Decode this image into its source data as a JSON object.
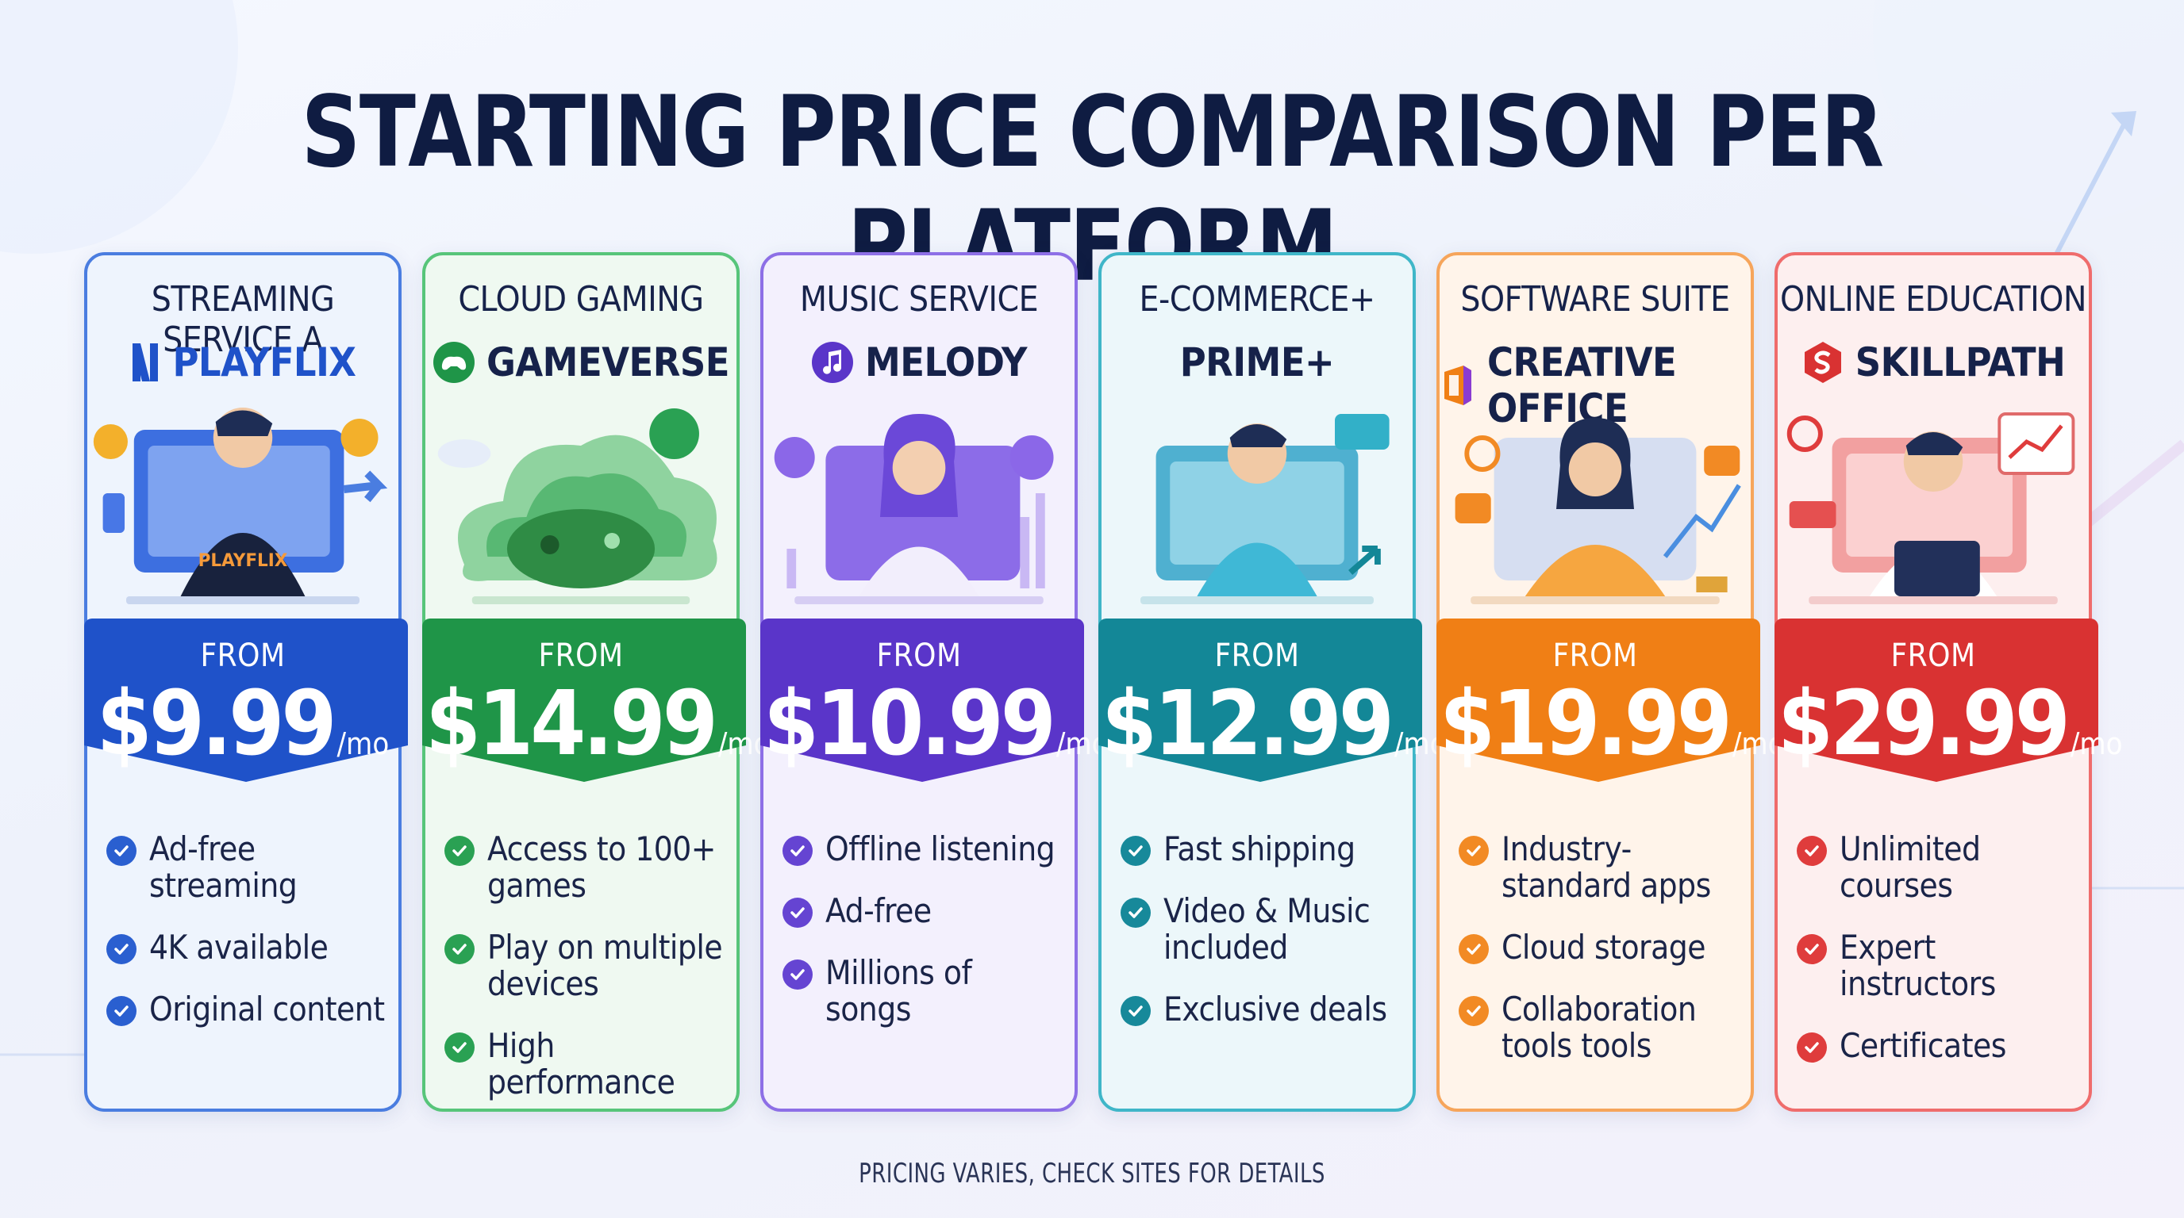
{
  "title": "STARTING PRICE COMPARISON PER PLATFORM",
  "footer": "PRICING VARIES, CHECK SITES FOR DETAILS",
  "cards": [
    {
      "category": "STREAMING SERVICE A",
      "brand": "PLAYFLIX",
      "icon": "playflix-logo-icon",
      "shirt_text": "PLAYFLIX",
      "from": "FROM",
      "price": "$9.99",
      "period": "/mo",
      "features": [
        "Ad-free streaming",
        "4K available",
        "Original content"
      ],
      "colors": {
        "primary": "#1f52c9",
        "border": "#4a7de0",
        "check": "#2a5fd0",
        "bg": "#eef4fd"
      }
    },
    {
      "category": "CLOUD GAMING",
      "brand": "GAMEVERSE",
      "icon": "gamepad-icon",
      "from": "FROM",
      "price": "$14.99",
      "period": "/mo",
      "features": [
        "Access to 100+ games",
        "Play on multiple devices",
        "High performance"
      ],
      "colors": {
        "primary": "#1f9548",
        "border": "#57c57a",
        "check": "#2aa153",
        "bg": "#eff9f1"
      }
    },
    {
      "category": "MUSIC SERVICE",
      "brand": "MELODY",
      "icon": "music-note-icon",
      "from": "FROM",
      "price": "$10.99",
      "period": "/mo",
      "features": [
        "Offline listening",
        "Ad-free",
        "Millions of songs"
      ],
      "colors": {
        "primary": "#5a35c9",
        "border": "#8d6fe6",
        "check": "#6544d2",
        "bg": "#f3f0fd"
      }
    },
    {
      "category": "E-COMMERCE+",
      "brand": "PRIME+",
      "icon": "",
      "from": "FROM",
      "price": "$12.99",
      "period": "/mo",
      "features": [
        "Fast shipping",
        "Video & Music included",
        "Exclusive deals"
      ],
      "colors": {
        "primary": "#138797",
        "border": "#3fb6c8",
        "check": "#17899a",
        "bg": "#ecf7fa"
      }
    },
    {
      "category": "SOFTWARE SUITE",
      "brand": "CREATIVE OFFICE",
      "icon": "office-logo-icon",
      "from": "FROM",
      "price": "$19.99",
      "period": "/mo",
      "features": [
        "Industry-standard apps",
        "Cloud storage",
        "Collaboration tools tools"
      ],
      "colors": {
        "primary": "#f07f15",
        "border": "#f6a55b",
        "check": "#f28a24",
        "bg": "#fff4ea"
      }
    },
    {
      "category": "ONLINE EDUCATION",
      "brand": "SKILLPATH",
      "icon": "skillpath-logo-icon",
      "from": "FROM",
      "price": "$29.99",
      "period": "/mo",
      "features": [
        "Unlimited courses",
        "Expert instructors",
        "Certificates"
      ],
      "colors": {
        "primary": "#d93232",
        "border": "#ef6c6c",
        "check": "#df3c3c",
        "bg": "#fdefef"
      }
    }
  ]
}
